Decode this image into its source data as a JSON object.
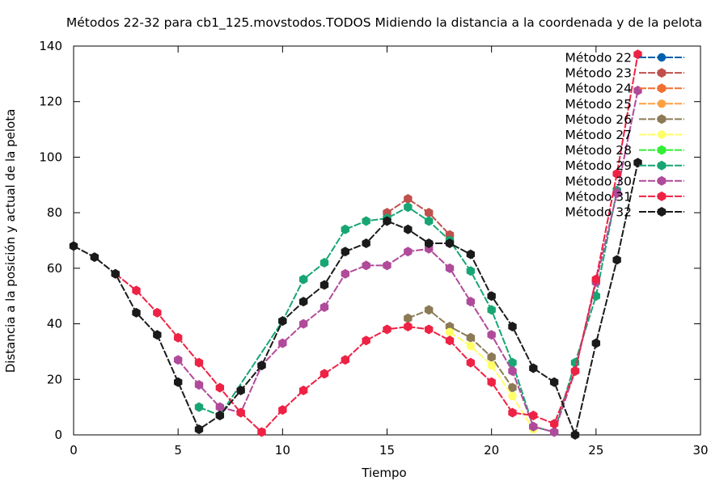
{
  "chart_data": {
    "type": "line",
    "title": "Métodos 22-32 para cb1_125.movstodos.TODOS Midiendo la distancia a la coordenada y de la pelota",
    "xlabel": "Tiempo",
    "ylabel": "Distancia a la posición y actual de la pelota",
    "xlim": [
      0,
      30
    ],
    "ylim": [
      0,
      140
    ],
    "xticks": [
      0,
      5,
      10,
      15,
      20,
      25,
      30
    ],
    "yticks": [
      0,
      20,
      40,
      60,
      80,
      100,
      120,
      140
    ],
    "grid": false,
    "legend_position": "top-right",
    "series": [
      {
        "name": "Método 22",
        "color": "#0060ad",
        "marker": "circle",
        "visible_points": false,
        "x": [],
        "y": []
      },
      {
        "name": "Método 23",
        "color": "#c0504d",
        "marker": "hexagon",
        "x": [
          15,
          16,
          17,
          18
        ],
        "y": [
          80,
          85,
          80,
          72
        ]
      },
      {
        "name": "Método 24",
        "color": "#f07030",
        "marker": "hexagon",
        "x": [],
        "y": []
      },
      {
        "name": "Método 25",
        "color": "#ffa040",
        "marker": "circle",
        "x": [],
        "y": []
      },
      {
        "name": "Método 26",
        "color": "#8b7a55",
        "marker": "hexagon",
        "x": [
          16,
          17,
          18,
          19,
          20,
          21
        ],
        "y": [
          42,
          45,
          39,
          35,
          28,
          17
        ]
      },
      {
        "name": "Método 27",
        "color": "#ffff66",
        "marker": "circle",
        "x": [
          18,
          19,
          20,
          21,
          22
        ],
        "y": [
          37,
          32,
          25,
          14,
          2
        ]
      },
      {
        "name": "Método 28",
        "color": "#33ee33",
        "marker": "hexagon",
        "x": [],
        "y": []
      },
      {
        "name": "Método 29",
        "color": "#17a673",
        "marker": "hexagon",
        "x": [
          6,
          7,
          10,
          11,
          12,
          13,
          14,
          15,
          16,
          17,
          18,
          19,
          20,
          21,
          22,
          23,
          24,
          25,
          26
        ],
        "y": [
          10,
          7,
          41,
          56,
          62,
          74,
          77,
          78,
          82,
          77,
          70,
          59,
          45,
          26,
          3,
          1,
          26,
          50,
          88
        ]
      },
      {
        "name": "Método 30",
        "color": "#b04a9a",
        "marker": "hexagon",
        "x": [
          5,
          6,
          7,
          8,
          9,
          10,
          11,
          12,
          13,
          14,
          15,
          16,
          17,
          18,
          19,
          20,
          21,
          22,
          23,
          24,
          25,
          26,
          27
        ],
        "y": [
          27,
          18,
          10,
          8,
          25,
          33,
          40,
          46,
          58,
          61,
          61,
          66,
          67,
          60,
          48,
          36,
          23,
          3,
          1,
          23,
          55,
          87,
          124
        ]
      },
      {
        "name": "Método 31",
        "color": "#ee2244",
        "marker": "hexagon",
        "x": [
          2,
          3,
          4,
          5,
          6,
          7,
          8,
          9,
          10,
          11,
          12,
          13,
          14,
          15,
          16,
          17,
          18,
          19,
          20,
          21,
          22,
          23,
          24,
          25,
          26,
          27
        ],
        "y": [
          58,
          52,
          44,
          35,
          26,
          17,
          8,
          1,
          9,
          16,
          22,
          27,
          34,
          38,
          39,
          38,
          34,
          26,
          19,
          8,
          7,
          4,
          23,
          56,
          94,
          137
        ]
      },
      {
        "name": "Método 32",
        "color": "#1a1a1a",
        "marker": "hexagon",
        "x": [
          0,
          1,
          2,
          3,
          4,
          5,
          6,
          7,
          8,
          9,
          10,
          11,
          12,
          13,
          14,
          15,
          16,
          17,
          18,
          19,
          20,
          21,
          22,
          23,
          24,
          25,
          26,
          27
        ],
        "y": [
          68,
          64,
          58,
          44,
          36,
          19,
          2,
          7,
          16,
          25,
          41,
          48,
          54,
          66,
          69,
          77,
          74,
          69,
          69,
          65,
          50,
          39,
          24,
          19,
          0,
          33,
          63,
          98
        ]
      }
    ]
  }
}
